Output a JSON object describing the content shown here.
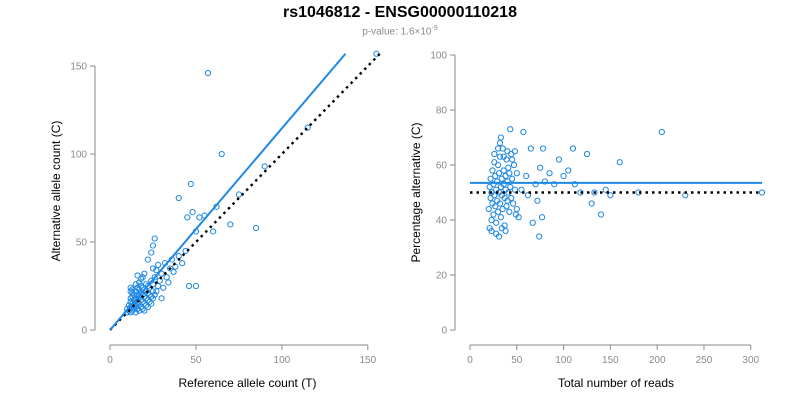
{
  "title": "rs1046812 - ENSG00000110218",
  "subtitle": {
    "prefix": "p-value: 1.6×10",
    "exponent": "-9"
  },
  "colors": {
    "points": "#1E88E5",
    "fit_line": "#1E88E5",
    "reference_line": "#000000",
    "axis": "#8a8a8a"
  },
  "chart_data": [
    {
      "type": "scatter",
      "xlabel": "Reference allele count (T)",
      "ylabel": "Alternative allele count (C)",
      "xlim": [
        0,
        160
      ],
      "ylim": [
        0,
        158
      ],
      "xticks": [
        "0",
        "50",
        "100",
        "150"
      ],
      "yticks": [
        "0",
        "50",
        "100",
        "150"
      ],
      "series": [
        {
          "points": [
            [
              10,
              10
            ],
            [
              10,
              12
            ],
            [
              11,
              14
            ],
            [
              11,
              11
            ],
            [
              12,
              10
            ],
            [
              12,
              13
            ],
            [
              12,
              16
            ],
            [
              12,
              18
            ],
            [
              12,
              22
            ],
            [
              12,
              24
            ],
            [
              13,
              11
            ],
            [
              13,
              15
            ],
            [
              13,
              19
            ],
            [
              13,
              21
            ],
            [
              13,
              23
            ],
            [
              14,
              12
            ],
            [
              14,
              17
            ],
            [
              14,
              20
            ],
            [
              14,
              13
            ],
            [
              15,
              10
            ],
            [
              15,
              14
            ],
            [
              15,
              18
            ],
            [
              15,
              22
            ],
            [
              15,
              26
            ],
            [
              16,
              12
            ],
            [
              16,
              16
            ],
            [
              16,
              20
            ],
            [
              16,
              24
            ],
            [
              16,
              31
            ],
            [
              17,
              11
            ],
            [
              17,
              15
            ],
            [
              17,
              19
            ],
            [
              17,
              23
            ],
            [
              17,
              27
            ],
            [
              18,
              13
            ],
            [
              18,
              17
            ],
            [
              18,
              21
            ],
            [
              18,
              25
            ],
            [
              18,
              29
            ],
            [
              19,
              12
            ],
            [
              19,
              16
            ],
            [
              19,
              20
            ],
            [
              19,
              24
            ],
            [
              19,
              30
            ],
            [
              20,
              11
            ],
            [
              20,
              15
            ],
            [
              20,
              19
            ],
            [
              20,
              23
            ],
            [
              20,
              32
            ],
            [
              21,
              14
            ],
            [
              21,
              18
            ],
            [
              21,
              22
            ],
            [
              21,
              26
            ],
            [
              22,
              13
            ],
            [
              22,
              17
            ],
            [
              22,
              21
            ],
            [
              22,
              25
            ],
            [
              22,
              40
            ],
            [
              23,
              16
            ],
            [
              23,
              20
            ],
            [
              23,
              24
            ],
            [
              24,
              15
            ],
            [
              24,
              19
            ],
            [
              24,
              28
            ],
            [
              24,
              44
            ],
            [
              25,
              18
            ],
            [
              25,
              22
            ],
            [
              25,
              26
            ],
            [
              25,
              35
            ],
            [
              25,
              48
            ],
            [
              26,
              20
            ],
            [
              26,
              30
            ],
            [
              26,
              52
            ],
            [
              27,
              22
            ],
            [
              27,
              34
            ],
            [
              28,
              25
            ],
            [
              28,
              37
            ],
            [
              29,
              28
            ],
            [
              30,
              32
            ],
            [
              30,
              18
            ],
            [
              31,
              24
            ],
            [
              32,
              38
            ],
            [
              33,
              30
            ],
            [
              34,
              27
            ],
            [
              35,
              35
            ],
            [
              36,
              40
            ],
            [
              37,
              33
            ],
            [
              38,
              36
            ],
            [
              40,
              75
            ],
            [
              40,
              42
            ],
            [
              42,
              38
            ],
            [
              44,
              45
            ],
            [
              45,
              64
            ],
            [
              46,
              25
            ],
            [
              47,
              83
            ],
            [
              48,
              67
            ],
            [
              50,
              25
            ],
            [
              50,
              56
            ],
            [
              52,
              64
            ],
            [
              55,
              65
            ],
            [
              57,
              146
            ],
            [
              60,
              56
            ],
            [
              62,
              70
            ],
            [
              65,
              100
            ],
            [
              70,
              60
            ],
            [
              75,
              77
            ],
            [
              85,
              58
            ],
            [
              90,
              93
            ],
            [
              115,
              115
            ],
            [
              155,
              157
            ]
          ]
        }
      ],
      "fit_line": {
        "x": [
          0,
          137
        ],
        "y": [
          0,
          157
        ]
      },
      "reference_line": {
        "x": [
          0,
          157
        ],
        "y": [
          0,
          157
        ]
      }
    },
    {
      "type": "scatter",
      "xlabel": "Total number of reads",
      "ylabel": "Percentage alternative (C)",
      "xlim": [
        0,
        312
      ],
      "ylim": [
        0,
        100
      ],
      "xticks": [
        "0",
        "50",
        "100",
        "150",
        "200",
        "250",
        "300"
      ],
      "yticks": [
        "0",
        "20",
        "40",
        "60",
        "80",
        "100"
      ],
      "series": [
        {
          "points": [
            [
              20,
              44
            ],
            [
              21,
              52
            ],
            [
              22,
              48
            ],
            [
              22,
              55
            ],
            [
              23,
              40
            ],
            [
              23,
              50
            ],
            [
              24,
              46
            ],
            [
              24,
              58
            ],
            [
              25,
              53
            ],
            [
              25,
              42
            ],
            [
              26,
              49
            ],
            [
              26,
              61
            ],
            [
              27,
              45
            ],
            [
              27,
              56
            ],
            [
              28,
              51
            ],
            [
              28,
              39
            ],
            [
              29,
              54
            ],
            [
              29,
              47
            ],
            [
              30,
              60
            ],
            [
              30,
              43
            ],
            [
              31,
              50
            ],
            [
              31,
              57
            ],
            [
              32,
              46
            ],
            [
              32,
              63
            ],
            [
              33,
              52
            ],
            [
              33,
              41
            ],
            [
              34,
              55
            ],
            [
              34,
              49
            ],
            [
              35,
              66
            ],
            [
              35,
              44
            ],
            [
              36,
              53
            ],
            [
              36,
              58
            ],
            [
              37,
              48
            ],
            [
              37,
              38
            ],
            [
              38,
              56
            ],
            [
              38,
              51
            ],
            [
              39,
              62
            ],
            [
              39,
              45
            ],
            [
              40,
              54
            ],
            [
              40,
              47
            ],
            [
              41,
              59
            ],
            [
              41,
              50
            ],
            [
              42,
              43
            ],
            [
              42,
              57
            ],
            [
              43,
              52
            ],
            [
              44,
              64
            ],
            [
              44,
              48
            ],
            [
              45,
              55
            ],
            [
              46,
              46
            ],
            [
              47,
              60
            ],
            [
              48,
              51
            ],
            [
              49,
              42
            ],
            [
              50,
              57
            ],
            [
              21,
              37
            ],
            [
              23,
              36
            ],
            [
              26,
              64
            ],
            [
              28,
              35
            ],
            [
              30,
              66
            ],
            [
              31,
              34
            ],
            [
              32,
              68
            ],
            [
              33,
              70
            ],
            [
              34,
              37
            ],
            [
              36,
              63
            ],
            [
              38,
              36
            ],
            [
              40,
              65
            ],
            [
              43,
              73
            ],
            [
              45,
              62
            ],
            [
              48,
              65
            ],
            [
              50,
              44
            ],
            [
              52,
              41
            ],
            [
              55,
              51
            ],
            [
              57,
              72
            ],
            [
              60,
              56
            ],
            [
              62,
              49
            ],
            [
              65,
              66
            ],
            [
              67,
              39
            ],
            [
              70,
              53
            ],
            [
              72,
              47
            ],
            [
              74,
              34
            ],
            [
              75,
              59
            ],
            [
              77,
              41
            ],
            [
              78,
              66
            ],
            [
              80,
              54
            ],
            [
              85,
              57
            ],
            [
              90,
              53
            ],
            [
              95,
              62
            ],
            [
              100,
              56
            ],
            [
              105,
              58
            ],
            [
              110,
              66
            ],
            [
              112,
              53
            ],
            [
              118,
              50
            ],
            [
              125,
              64
            ],
            [
              130,
              46
            ],
            [
              133,
              50
            ],
            [
              140,
              42
            ],
            [
              145,
              51
            ],
            [
              150,
              49
            ],
            [
              160,
              61
            ],
            [
              180,
              50
            ],
            [
              205,
              72
            ],
            [
              230,
              49
            ],
            [
              312,
              50
            ]
          ]
        }
      ],
      "fit_line": {
        "x": [
          0,
          312
        ],
        "y": [
          53.5,
          53.5
        ]
      },
      "reference_line": {
        "x": [
          0,
          312
        ],
        "y": [
          50,
          50
        ]
      }
    }
  ]
}
